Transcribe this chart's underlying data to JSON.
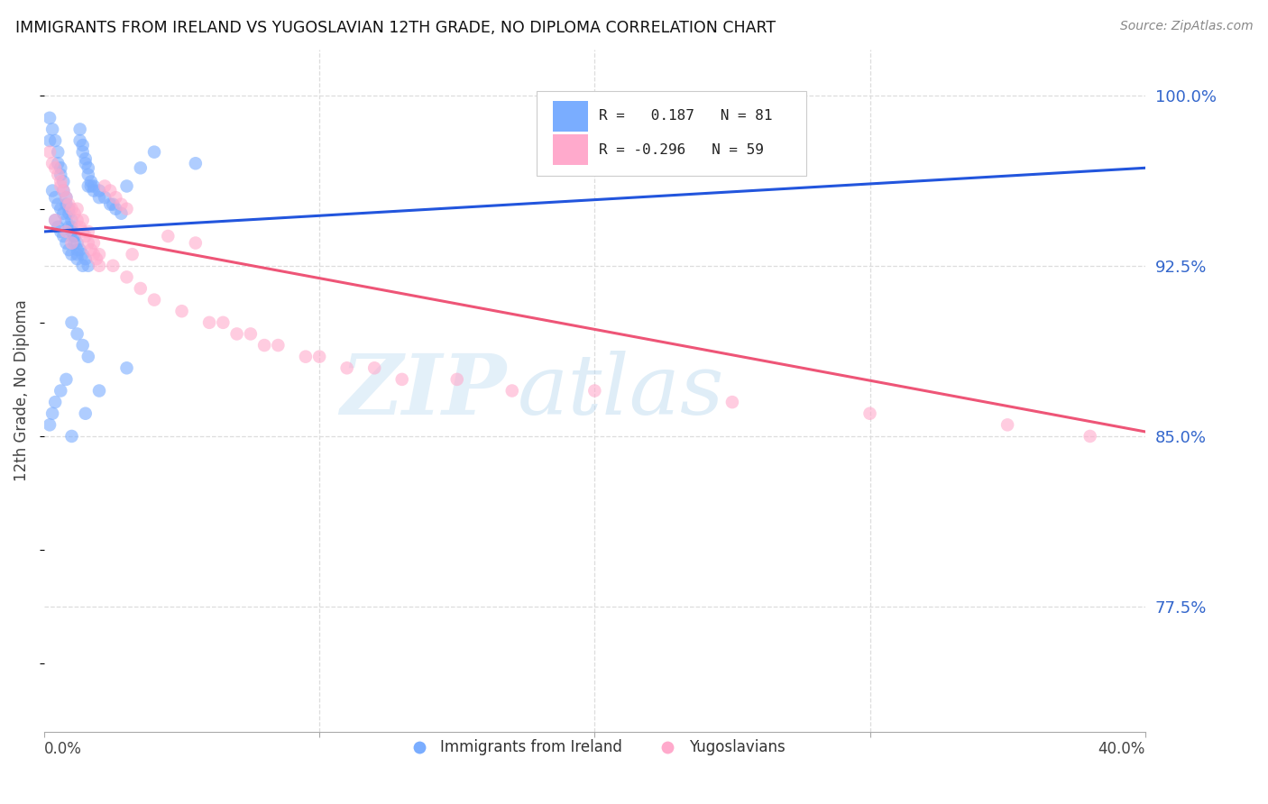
{
  "title": "IMMIGRANTS FROM IRELAND VS YUGOSLAVIAN 12TH GRADE, NO DIPLOMA CORRELATION CHART",
  "source": "Source: ZipAtlas.com",
  "ylabel": "12th Grade, No Diploma",
  "ytick_labels": [
    "100.0%",
    "92.5%",
    "85.0%",
    "77.5%"
  ],
  "ytick_values": [
    1.0,
    0.925,
    0.85,
    0.775
  ],
  "xlim": [
    0.0,
    0.4
  ],
  "ylim": [
    0.72,
    1.02
  ],
  "color_ireland": "#7aadff",
  "color_yugoslavian": "#ffaacc",
  "color_trend_ireland": "#2255dd",
  "color_trend_yugoslavian": "#ee5577",
  "watermark_zip": "ZIP",
  "watermark_atlas": "atlas",
  "trend_ireland_x0": 0.0,
  "trend_ireland_x1": 0.4,
  "trend_ireland_y0": 0.94,
  "trend_ireland_y1": 0.968,
  "trend_yugoslavian_x0": 0.0,
  "trend_yugoslavian_x1": 0.4,
  "trend_yugoslavian_y0": 0.942,
  "trend_yugoslavian_y1": 0.852,
  "legend_r1_label": "R =   0.187   N = 81",
  "legend_r2_label": "R = -0.296   N = 59",
  "ireland_scatter_x": [
    0.002,
    0.003,
    0.004,
    0.005,
    0.005,
    0.006,
    0.006,
    0.007,
    0.007,
    0.008,
    0.008,
    0.009,
    0.009,
    0.01,
    0.01,
    0.01,
    0.011,
    0.011,
    0.012,
    0.012,
    0.013,
    0.013,
    0.014,
    0.014,
    0.015,
    0.015,
    0.016,
    0.016,
    0.017,
    0.017,
    0.003,
    0.004,
    0.005,
    0.006,
    0.007,
    0.008,
    0.009,
    0.01,
    0.011,
    0.012,
    0.013,
    0.014,
    0.015,
    0.016,
    0.018,
    0.02,
    0.022,
    0.024,
    0.026,
    0.028,
    0.004,
    0.005,
    0.006,
    0.007,
    0.008,
    0.009,
    0.01,
    0.012,
    0.014,
    0.016,
    0.018,
    0.02,
    0.025,
    0.03,
    0.035,
    0.04,
    0.01,
    0.012,
    0.014,
    0.016,
    0.03,
    0.02,
    0.015,
    0.01,
    0.008,
    0.006,
    0.004,
    0.003,
    0.002,
    0.002,
    0.055
  ],
  "ireland_scatter_y": [
    0.99,
    0.985,
    0.98,
    0.975,
    0.97,
    0.968,
    0.965,
    0.962,
    0.958,
    0.955,
    0.952,
    0.95,
    0.948,
    0.945,
    0.942,
    0.94,
    0.938,
    0.935,
    0.932,
    0.93,
    0.985,
    0.98,
    0.978,
    0.975,
    0.972,
    0.97,
    0.968,
    0.965,
    0.962,
    0.96,
    0.958,
    0.955,
    0.952,
    0.95,
    0.948,
    0.945,
    0.942,
    0.94,
    0.938,
    0.935,
    0.932,
    0.93,
    0.928,
    0.925,
    0.96,
    0.958,
    0.955,
    0.952,
    0.95,
    0.948,
    0.945,
    0.942,
    0.94,
    0.938,
    0.935,
    0.932,
    0.93,
    0.928,
    0.925,
    0.96,
    0.958,
    0.955,
    0.952,
    0.96,
    0.968,
    0.975,
    0.9,
    0.895,
    0.89,
    0.885,
    0.88,
    0.87,
    0.86,
    0.85,
    0.875,
    0.87,
    0.865,
    0.86,
    0.855,
    0.98,
    0.97
  ],
  "yugoslavian_scatter_x": [
    0.002,
    0.003,
    0.004,
    0.005,
    0.006,
    0.007,
    0.008,
    0.009,
    0.01,
    0.011,
    0.012,
    0.013,
    0.014,
    0.015,
    0.016,
    0.017,
    0.018,
    0.019,
    0.02,
    0.022,
    0.024,
    0.026,
    0.028,
    0.03,
    0.032,
    0.004,
    0.006,
    0.008,
    0.01,
    0.012,
    0.014,
    0.016,
    0.018,
    0.02,
    0.025,
    0.03,
    0.035,
    0.04,
    0.05,
    0.06,
    0.07,
    0.08,
    0.1,
    0.12,
    0.15,
    0.2,
    0.25,
    0.3,
    0.35,
    0.38,
    0.045,
    0.055,
    0.065,
    0.075,
    0.085,
    0.095,
    0.11,
    0.13,
    0.17
  ],
  "yugoslavian_scatter_y": [
    0.975,
    0.97,
    0.968,
    0.965,
    0.962,
    0.958,
    0.955,
    0.952,
    0.95,
    0.948,
    0.945,
    0.942,
    0.94,
    0.938,
    0.935,
    0.932,
    0.93,
    0.928,
    0.925,
    0.96,
    0.958,
    0.955,
    0.952,
    0.95,
    0.93,
    0.945,
    0.96,
    0.94,
    0.935,
    0.95,
    0.945,
    0.94,
    0.935,
    0.93,
    0.925,
    0.92,
    0.915,
    0.91,
    0.905,
    0.9,
    0.895,
    0.89,
    0.885,
    0.88,
    0.875,
    0.87,
    0.865,
    0.86,
    0.855,
    0.85,
    0.938,
    0.935,
    0.9,
    0.895,
    0.89,
    0.885,
    0.88,
    0.875,
    0.87
  ]
}
